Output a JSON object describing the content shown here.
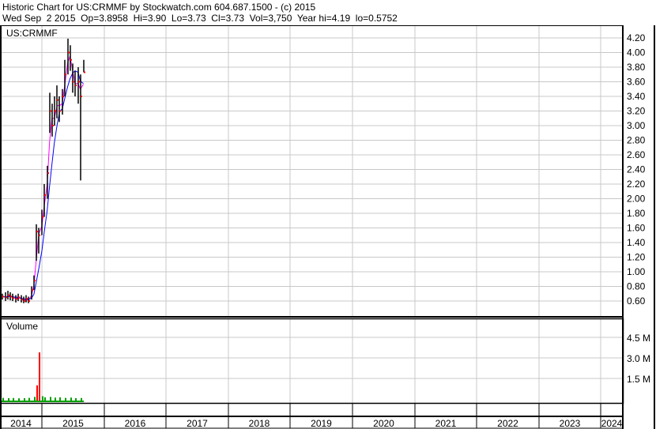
{
  "header": {
    "title": "Historic Chart for US:CRMMF by Stockwatch.com 604.687.1500 - (c) 2015",
    "quote": "Wed Sep  2 2015  Op=3.8958  Hi=3.90  Lo=3.73  Cl=3.73  Vol=3,750  Year hi=4.19  lo=0.5752"
  },
  "colors": {
    "bars": "#000000",
    "close_marks": "#ff0000",
    "ma_short": "#ff00ff",
    "ma_long": "#0000ff",
    "volume": "#00a000",
    "volume_spike": "#ff0000",
    "grid": "#c8c8c8"
  },
  "chart_data": [
    {
      "type": "line",
      "title": "US:CRMMF",
      "y_ticks": [
        "0.60",
        "0.80",
        "1.00",
        "1.20",
        "1.40",
        "1.60",
        "1.80",
        "2.00",
        "2.20",
        "2.40",
        "2.60",
        "2.80",
        "3.00",
        "3.20",
        "3.40",
        "3.60",
        "3.80",
        "4.00",
        "4.20"
      ],
      "ylim": [
        0.5,
        4.3
      ],
      "x_ticks": [
        "2014",
        "2015",
        "2016",
        "2017",
        "2018",
        "2019",
        "2020",
        "2021",
        "2022",
        "2023",
        "2024"
      ],
      "grid": true,
      "series": [
        {
          "date": "2014-05-15",
          "high": 0.7,
          "low": 0.62,
          "close": 0.66
        },
        {
          "date": "2014-06-01",
          "high": 0.72,
          "low": 0.6,
          "close": 0.65
        },
        {
          "date": "2014-06-15",
          "high": 0.74,
          "low": 0.62,
          "close": 0.68
        },
        {
          "date": "2014-07-01",
          "high": 0.72,
          "low": 0.61,
          "close": 0.66
        },
        {
          "date": "2014-07-15",
          "high": 0.7,
          "low": 0.6,
          "close": 0.64
        },
        {
          "date": "2014-08-01",
          "high": 0.68,
          "low": 0.58,
          "close": 0.63
        },
        {
          "date": "2014-08-15",
          "high": 0.7,
          "low": 0.6,
          "close": 0.65
        },
        {
          "date": "2014-09-01",
          "high": 0.68,
          "low": 0.58,
          "close": 0.62
        },
        {
          "date": "2014-09-15",
          "high": 0.66,
          "low": 0.57,
          "close": 0.6
        },
        {
          "date": "2014-10-01",
          "high": 0.68,
          "low": 0.58,
          "close": 0.63
        },
        {
          "date": "2014-10-15",
          "high": 0.66,
          "low": 0.57,
          "close": 0.6
        },
        {
          "date": "2014-11-01",
          "high": 0.8,
          "low": 0.62,
          "close": 0.75
        },
        {
          "date": "2014-11-15",
          "high": 0.95,
          "low": 0.75,
          "close": 0.88
        },
        {
          "date": "2014-12-01",
          "high": 1.65,
          "low": 1.15,
          "close": 1.55
        },
        {
          "date": "2014-12-15",
          "high": 1.6,
          "low": 1.25,
          "close": 1.5
        },
        {
          "date": "2015-01-01",
          "high": 1.85,
          "low": 1.5,
          "close": 1.75
        },
        {
          "date": "2015-01-15",
          "high": 2.2,
          "low": 1.75,
          "close": 2.05
        },
        {
          "date": "2015-02-01",
          "high": 2.45,
          "low": 2.0,
          "close": 2.35
        },
        {
          "date": "2015-02-15",
          "high": 3.45,
          "low": 2.9,
          "close": 3.2
        },
        {
          "date": "2015-03-01",
          "high": 3.3,
          "low": 2.85,
          "close": 3.0
        },
        {
          "date": "2015-03-15",
          "high": 3.4,
          "low": 3.0,
          "close": 3.2
        },
        {
          "date": "2015-04-01",
          "high": 3.55,
          "low": 3.1,
          "close": 3.35
        },
        {
          "date": "2015-04-15",
          "high": 3.4,
          "low": 3.05,
          "close": 3.2
        },
        {
          "date": "2015-05-01",
          "high": 3.5,
          "low": 3.15,
          "close": 3.4
        },
        {
          "date": "2015-05-15",
          "high": 3.9,
          "low": 3.4,
          "close": 3.7
        },
        {
          "date": "2015-06-01",
          "high": 4.19,
          "low": 3.7,
          "close": 4.0
        },
        {
          "date": "2015-06-15",
          "high": 4.1,
          "low": 3.75,
          "close": 3.9
        },
        {
          "date": "2015-07-01",
          "high": 3.85,
          "low": 3.45,
          "close": 3.6
        },
        {
          "date": "2015-07-15",
          "high": 3.75,
          "low": 3.4,
          "close": 3.55
        },
        {
          "date": "2015-08-01",
          "high": 3.8,
          "low": 3.3,
          "close": 3.6
        },
        {
          "date": "2015-08-15",
          "high": 3.7,
          "low": 2.25,
          "close": 3.4
        },
        {
          "date": "2015-09-02",
          "high": 3.9,
          "low": 3.73,
          "close": 3.73
        }
      ]
    },
    {
      "type": "bar",
      "title": "Volume",
      "y_ticks": [
        "1.5 M",
        "3.0 M",
        "4.5 M"
      ],
      "ylim": [
        0,
        5.5
      ],
      "unit": "M",
      "series": [
        {
          "date": "2014-05-15",
          "value": 0.08
        },
        {
          "date": "2014-06-15",
          "value": 0.06
        },
        {
          "date": "2014-07-15",
          "value": 0.07
        },
        {
          "date": "2014-08-15",
          "value": 0.05
        },
        {
          "date": "2014-09-15",
          "value": 0.06
        },
        {
          "date": "2014-10-15",
          "value": 0.08
        },
        {
          "date": "2014-11-15",
          "value": 0.15
        },
        {
          "date": "2014-12-01",
          "value": 1.0
        },
        {
          "date": "2014-12-15",
          "value": 3.4
        },
        {
          "date": "2015-01-01",
          "value": 0.2
        },
        {
          "date": "2015-01-15",
          "value": 0.12
        },
        {
          "date": "2015-02-15",
          "value": 0.15
        },
        {
          "date": "2015-03-15",
          "value": 0.1
        },
        {
          "date": "2015-04-15",
          "value": 0.12
        },
        {
          "date": "2015-05-15",
          "value": 0.08
        },
        {
          "date": "2015-06-15",
          "value": 0.1
        },
        {
          "date": "2015-07-15",
          "value": 0.06
        },
        {
          "date": "2015-08-15",
          "value": 0.07
        }
      ]
    }
  ]
}
